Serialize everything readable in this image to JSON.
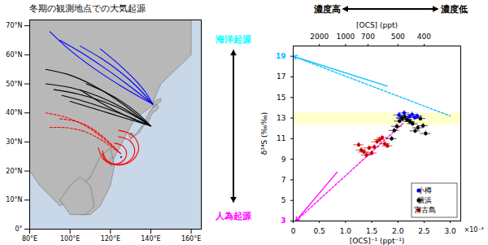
{
  "chart_data": [
    {
      "type": "map",
      "title": "冬期の観測地点での大気起源",
      "xlim": [
        80,
        165
      ],
      "ylim": [
        0,
        72
      ],
      "xticks": [
        {
          "value": 80,
          "label": "80°E"
        },
        {
          "value": 100,
          "label": "100°E"
        },
        {
          "value": 120,
          "label": "120°E"
        },
        {
          "value": 140,
          "label": "140°E"
        },
        {
          "value": 160,
          "label": "160°E"
        }
      ],
      "yticks": [
        {
          "value": 0,
          "label": "0°"
        },
        {
          "value": 10,
          "label": "10°N"
        },
        {
          "value": 20,
          "label": "20°N"
        },
        {
          "value": 30,
          "label": "30°N"
        },
        {
          "value": 40,
          "label": "40°N"
        },
        {
          "value": 50,
          "label": "50°N"
        },
        {
          "value": 60,
          "label": "60°N"
        },
        {
          "value": 70,
          "label": "70°N"
        }
      ],
      "sea_color": "#c8d8e8",
      "land_color": "#b8b8b8",
      "land": [
        [
          [
            80,
            72
          ],
          [
            160,
            72
          ],
          [
            160,
            60
          ],
          [
            145,
            50
          ],
          [
            140,
            42
          ],
          [
            132,
            38
          ],
          [
            126,
            30
          ],
          [
            120,
            22
          ],
          [
            110,
            18
          ],
          [
            100,
            10
          ],
          [
            95,
            8
          ],
          [
            85,
            15
          ],
          [
            80,
            20
          ],
          [
            80,
            72
          ]
        ],
        [
          [
            100,
            10
          ],
          [
            105,
            5
          ],
          [
            110,
            5
          ],
          [
            115,
            8
          ],
          [
            120,
            15
          ],
          [
            122,
            22
          ],
          [
            120,
            28
          ],
          [
            115,
            25
          ],
          [
            110,
            18
          ],
          [
            100,
            10
          ]
        ],
        [
          [
            95,
            10
          ],
          [
            100,
            5
          ],
          [
            108,
            5
          ],
          [
            112,
            8
          ],
          [
            110,
            15
          ],
          [
            105,
            18
          ],
          [
            100,
            15
          ],
          [
            95,
            10
          ]
        ],
        [
          [
            130,
            31
          ],
          [
            132,
            32
          ],
          [
            134,
            33
          ],
          [
            136,
            35
          ],
          [
            137,
            36
          ],
          [
            139,
            37
          ],
          [
            140,
            39
          ],
          [
            141,
            40
          ],
          [
            143,
            41
          ],
          [
            144,
            42
          ],
          [
            143,
            43
          ],
          [
            141,
            42
          ],
          [
            139,
            40
          ],
          [
            137,
            37
          ],
          [
            135,
            35
          ],
          [
            133,
            33
          ],
          [
            131,
            32
          ],
          [
            130,
            31
          ]
        ],
        [
          [
            130,
            31
          ],
          [
            131,
            32
          ],
          [
            131,
            33
          ],
          [
            130,
            33
          ],
          [
            129,
            32.5
          ],
          [
            129.5,
            31.5
          ],
          [
            130,
            31
          ]
        ],
        [
          [
            141,
            42
          ],
          [
            143,
            43
          ],
          [
            145,
            44
          ],
          [
            145,
            45
          ],
          [
            143,
            44.5
          ],
          [
            141,
            43.5
          ],
          [
            141,
            42
          ]
        ],
        [
          [
            120,
            22
          ],
          [
            121,
            22
          ],
          [
            121.5,
            24
          ],
          [
            121,
            25
          ],
          [
            120,
            24
          ],
          [
            120,
            22
          ]
        ]
      ],
      "points": [
        {
          "x": 125.3,
          "y": 24.8,
          "color": "black"
        }
      ],
      "trajectories": [
        {
          "color": "blue",
          "line_style": "solid",
          "points": [
            [
              90,
              68
            ],
            [
              99.75,
              61.75
            ],
            [
              111.5,
              55.5
            ],
            [
              125.25,
              49.25
            ],
            [
              141,
              43
            ]
          ]
        },
        {
          "color": "blue",
          "line_style": "solid",
          "points": [
            [
              95,
              65
            ],
            [
              105,
              61
            ],
            [
              116,
              56
            ],
            [
              128,
              50
            ],
            [
              141,
              43
            ]
          ]
        },
        {
          "color": "blue",
          "line_style": "solid",
          "points": [
            [
              105,
              63
            ],
            [
              115.5,
              58.75
            ],
            [
              125,
              54
            ],
            [
              133.5,
              48.75
            ],
            [
              141,
              43
            ]
          ]
        },
        {
          "color": "blue",
          "line_style": "solid",
          "points": [
            [
              115,
              62
            ],
            [
              124.5,
              56.5
            ],
            [
              132,
              51.5
            ],
            [
              137.5,
              47
            ],
            [
              141,
              43
            ]
          ]
        },
        {
          "color": "black",
          "line_style": "solid",
          "points": [
            [
              88,
              50
            ],
            [
              101,
              48.625
            ],
            [
              114,
              45.75
            ],
            [
              127,
              41.375
            ],
            [
              140,
              35.5
            ]
          ]
        },
        {
          "color": "black",
          "line_style": "solid",
          "points": [
            [
              92,
              48
            ],
            [
              104.75,
              46.375
            ],
            [
              117,
              43.75
            ],
            [
              128.75,
              40.125
            ],
            [
              140,
              35.5
            ]
          ]
        },
        {
          "color": "black",
          "line_style": "solid",
          "points": [
            [
              96,
              46
            ],
            [
              106.25,
              44.125
            ],
            [
              117,
              41.75
            ],
            [
              128.25,
              38.875
            ],
            [
              140,
              35.5
            ]
          ]
        },
        {
          "color": "black",
          "line_style": "solid",
          "points": [
            [
              100,
              44
            ],
            [
              110,
              41.875
            ],
            [
              120,
              39.75
            ],
            [
              130,
              37.625
            ],
            [
              140,
              35.5
            ]
          ]
        },
        {
          "color": "black",
          "line_style": "solid",
          "points": [
            [
              105,
              48
            ],
            [
              113.75,
              44.125
            ],
            [
              122.5,
              40.75
            ],
            [
              131.25,
              37.875
            ],
            [
              140,
              35.5
            ]
          ]
        },
        {
          "color": "black",
          "line_style": "solid",
          "points": [
            [
              108,
              50
            ],
            [
              117.5,
              47.125
            ],
            [
              126,
              43.75
            ],
            [
              133.5,
              39.875
            ],
            [
              140,
              35.5
            ]
          ]
        },
        {
          "color": "black",
          "line_style": "solid",
          "points": [
            [
              88,
              55
            ],
            [
              99.5,
              53.125
            ],
            [
              112,
              49.25
            ],
            [
              125.5,
              43.375
            ],
            [
              140,
              35.5
            ]
          ]
        },
        {
          "color": "red",
          "line_style": "solid",
          "points": [
            [
              116,
              26
            ],
            [
              117.757,
              23.454
            ],
            [
              122,
              22.4
            ],
            [
              126.243,
              23.454
            ],
            [
              128,
              26
            ],
            [
              126.243,
              28.546
            ],
            [
              122,
              29.6
            ]
          ]
        },
        {
          "color": "red",
          "line_style": "solid",
          "points": [
            [
              116,
              27
            ],
            [
              118.343,
              23.606
            ],
            [
              124,
              22.2
            ],
            [
              129.657,
              23.606
            ],
            [
              132,
              27
            ],
            [
              129.657,
              30.394
            ],
            [
              124,
              31.8
            ]
          ]
        },
        {
          "color": "red",
          "line_style": "solid",
          "points": [
            [
              114,
              28
            ],
            [
              116.929,
              23.757
            ],
            [
              124,
              22
            ],
            [
              131.071,
              23.757
            ],
            [
              134,
              28
            ],
            [
              131.071,
              32.243
            ],
            [
              124,
              34
            ]
          ]
        },
        {
          "color": "red",
          "line_style": "dashed",
          "points": [
            [
              95,
              38
            ],
            [
              102.5,
              37.1213
            ],
            [
              110,
              35
            ],
            [
              117.5,
              31.1213
            ],
            [
              125,
              26
            ]
          ]
        },
        {
          "color": "red",
          "line_style": "dashed",
          "points": [
            [
              90,
              35
            ],
            [
              98.75,
              34.8713
            ],
            [
              107.5,
              33.5
            ],
            [
              116.25,
              30.3713
            ],
            [
              125,
              26
            ]
          ]
        },
        {
          "color": "red",
          "line_style": "dashed",
          "points": [
            [
              88,
              40
            ],
            [
              97.25,
              38.6213
            ],
            [
              106.5,
              36
            ],
            [
              115.75,
              31.6213
            ],
            [
              125,
              26
            ]
          ]
        }
      ]
    },
    {
      "type": "scatter",
      "xlabel": "[OCS]⁻¹ (ppt⁻¹)",
      "x2label": "[OCS] (ppt)",
      "ylabel": "δ³⁴S (‰‰)",
      "xlim": [
        0.0,
        0.0032
      ],
      "ylim": [
        3,
        20
      ],
      "xticks": [
        0,
        {
          "value": 0.0005,
          "label": "0.5"
        },
        {
          "value": 0.001,
          "label": "1.0"
        },
        {
          "value": 0.0015,
          "label": "1.5"
        },
        {
          "value": 0.002,
          "label": "2.0"
        },
        {
          "value": 0.0025,
          "label": "2.5"
        },
        {
          "value": 0.003,
          "label": "3.0"
        }
      ],
      "x2ticks": [
        {
          "value": 0.0005,
          "label": "2000"
        },
        {
          "value": 0.001,
          "label": "1000"
        },
        {
          "value": 0.0014286,
          "label": "700"
        },
        {
          "value": 0.002,
          "label": "500"
        },
        {
          "value": 0.0025,
          "label": "400"
        }
      ],
      "yticks": [
        3,
        5,
        7,
        9,
        11,
        13,
        15,
        17,
        19
      ],
      "tick_label_colors": [
        {
          "value": 19,
          "color": "deepskyblue"
        },
        {
          "value": 3,
          "color": "magenta"
        }
      ],
      "band": {
        "ymin": 12.3,
        "ymax": 13.5,
        "color": "#ffffcc"
      },
      "lines": [
        {
          "x": [
            0.0,
            0.003
          ],
          "y": [
            19.0,
            13.2
          ],
          "color": "deepskyblue",
          "line_style": "dashed"
        },
        {
          "x": [
            5e-05,
            0.0021
          ],
          "y": [
            3.0,
            12.5
          ],
          "color": "magenta",
          "line_style": "dashed"
        }
      ],
      "arrows": [
        {
          "x1": 0.0018,
          "y1": 16.1,
          "x2": 0.0,
          "y2": 19.0,
          "color": "deepskyblue"
        },
        {
          "x1": 0.00084,
          "y1": 7.75,
          "x2": 5e-05,
          "y2": 3.0,
          "color": "magenta"
        }
      ],
      "series": [
        {
          "name": "小樽",
          "color": "blue",
          "marker": "circle",
          "x": [
            0.00202,
            0.00207,
            0.00212,
            0.00217,
            0.00222,
            0.00227,
            0.00232,
            0.00237
          ],
          "y": [
            13.3,
            13.05,
            13.5,
            12.85,
            13.15,
            13.35,
            13.05,
            13.2
          ],
          "xerr": 0.0001,
          "yerr": 0.25
        },
        {
          "name": "横浜",
          "color": "black",
          "marker": "circle",
          "x": [
            0.00188,
            0.00193,
            0.00198,
            0.00203,
            0.00208,
            0.00213,
            0.00218,
            0.00223,
            0.00228,
            0.00233,
            0.00238,
            0.00243,
            0.00248,
            0.00253
          ],
          "y": [
            11.0,
            11.8,
            12.2,
            12.7,
            12.95,
            13.15,
            12.85,
            12.65,
            12.45,
            11.75,
            12.05,
            12.95,
            12.25,
            11.5
          ],
          "xerr": 0.0001,
          "yerr": 0.25
        },
        {
          "name": "宮古島",
          "color": "#cc0000",
          "marker": "circle",
          "x": [
            0.00125,
            0.0013,
            0.00135,
            0.0014,
            0.00145,
            0.0015,
            0.00155,
            0.0016,
            0.00165,
            0.0017,
            0.00175,
            0.0018
          ],
          "y": [
            10.4,
            9.9,
            9.7,
            9.4,
            10.1,
            9.6,
            10.2,
            10.7,
            10.9,
            11.1,
            10.5,
            10.3
          ],
          "xerr": 0.0001,
          "yerr": 0.25
        }
      ],
      "legend": "lower right",
      "annotations": {
        "axis_multiplier": "×10⁻³",
        "marine": {
          "text": "海洋起源",
          "color": "cyan"
        },
        "anthropogenic": {
          "text": "人為起源",
          "color": "magenta"
        },
        "concentration": [
          "濃度高",
          "濃度低"
        ]
      }
    }
  ]
}
